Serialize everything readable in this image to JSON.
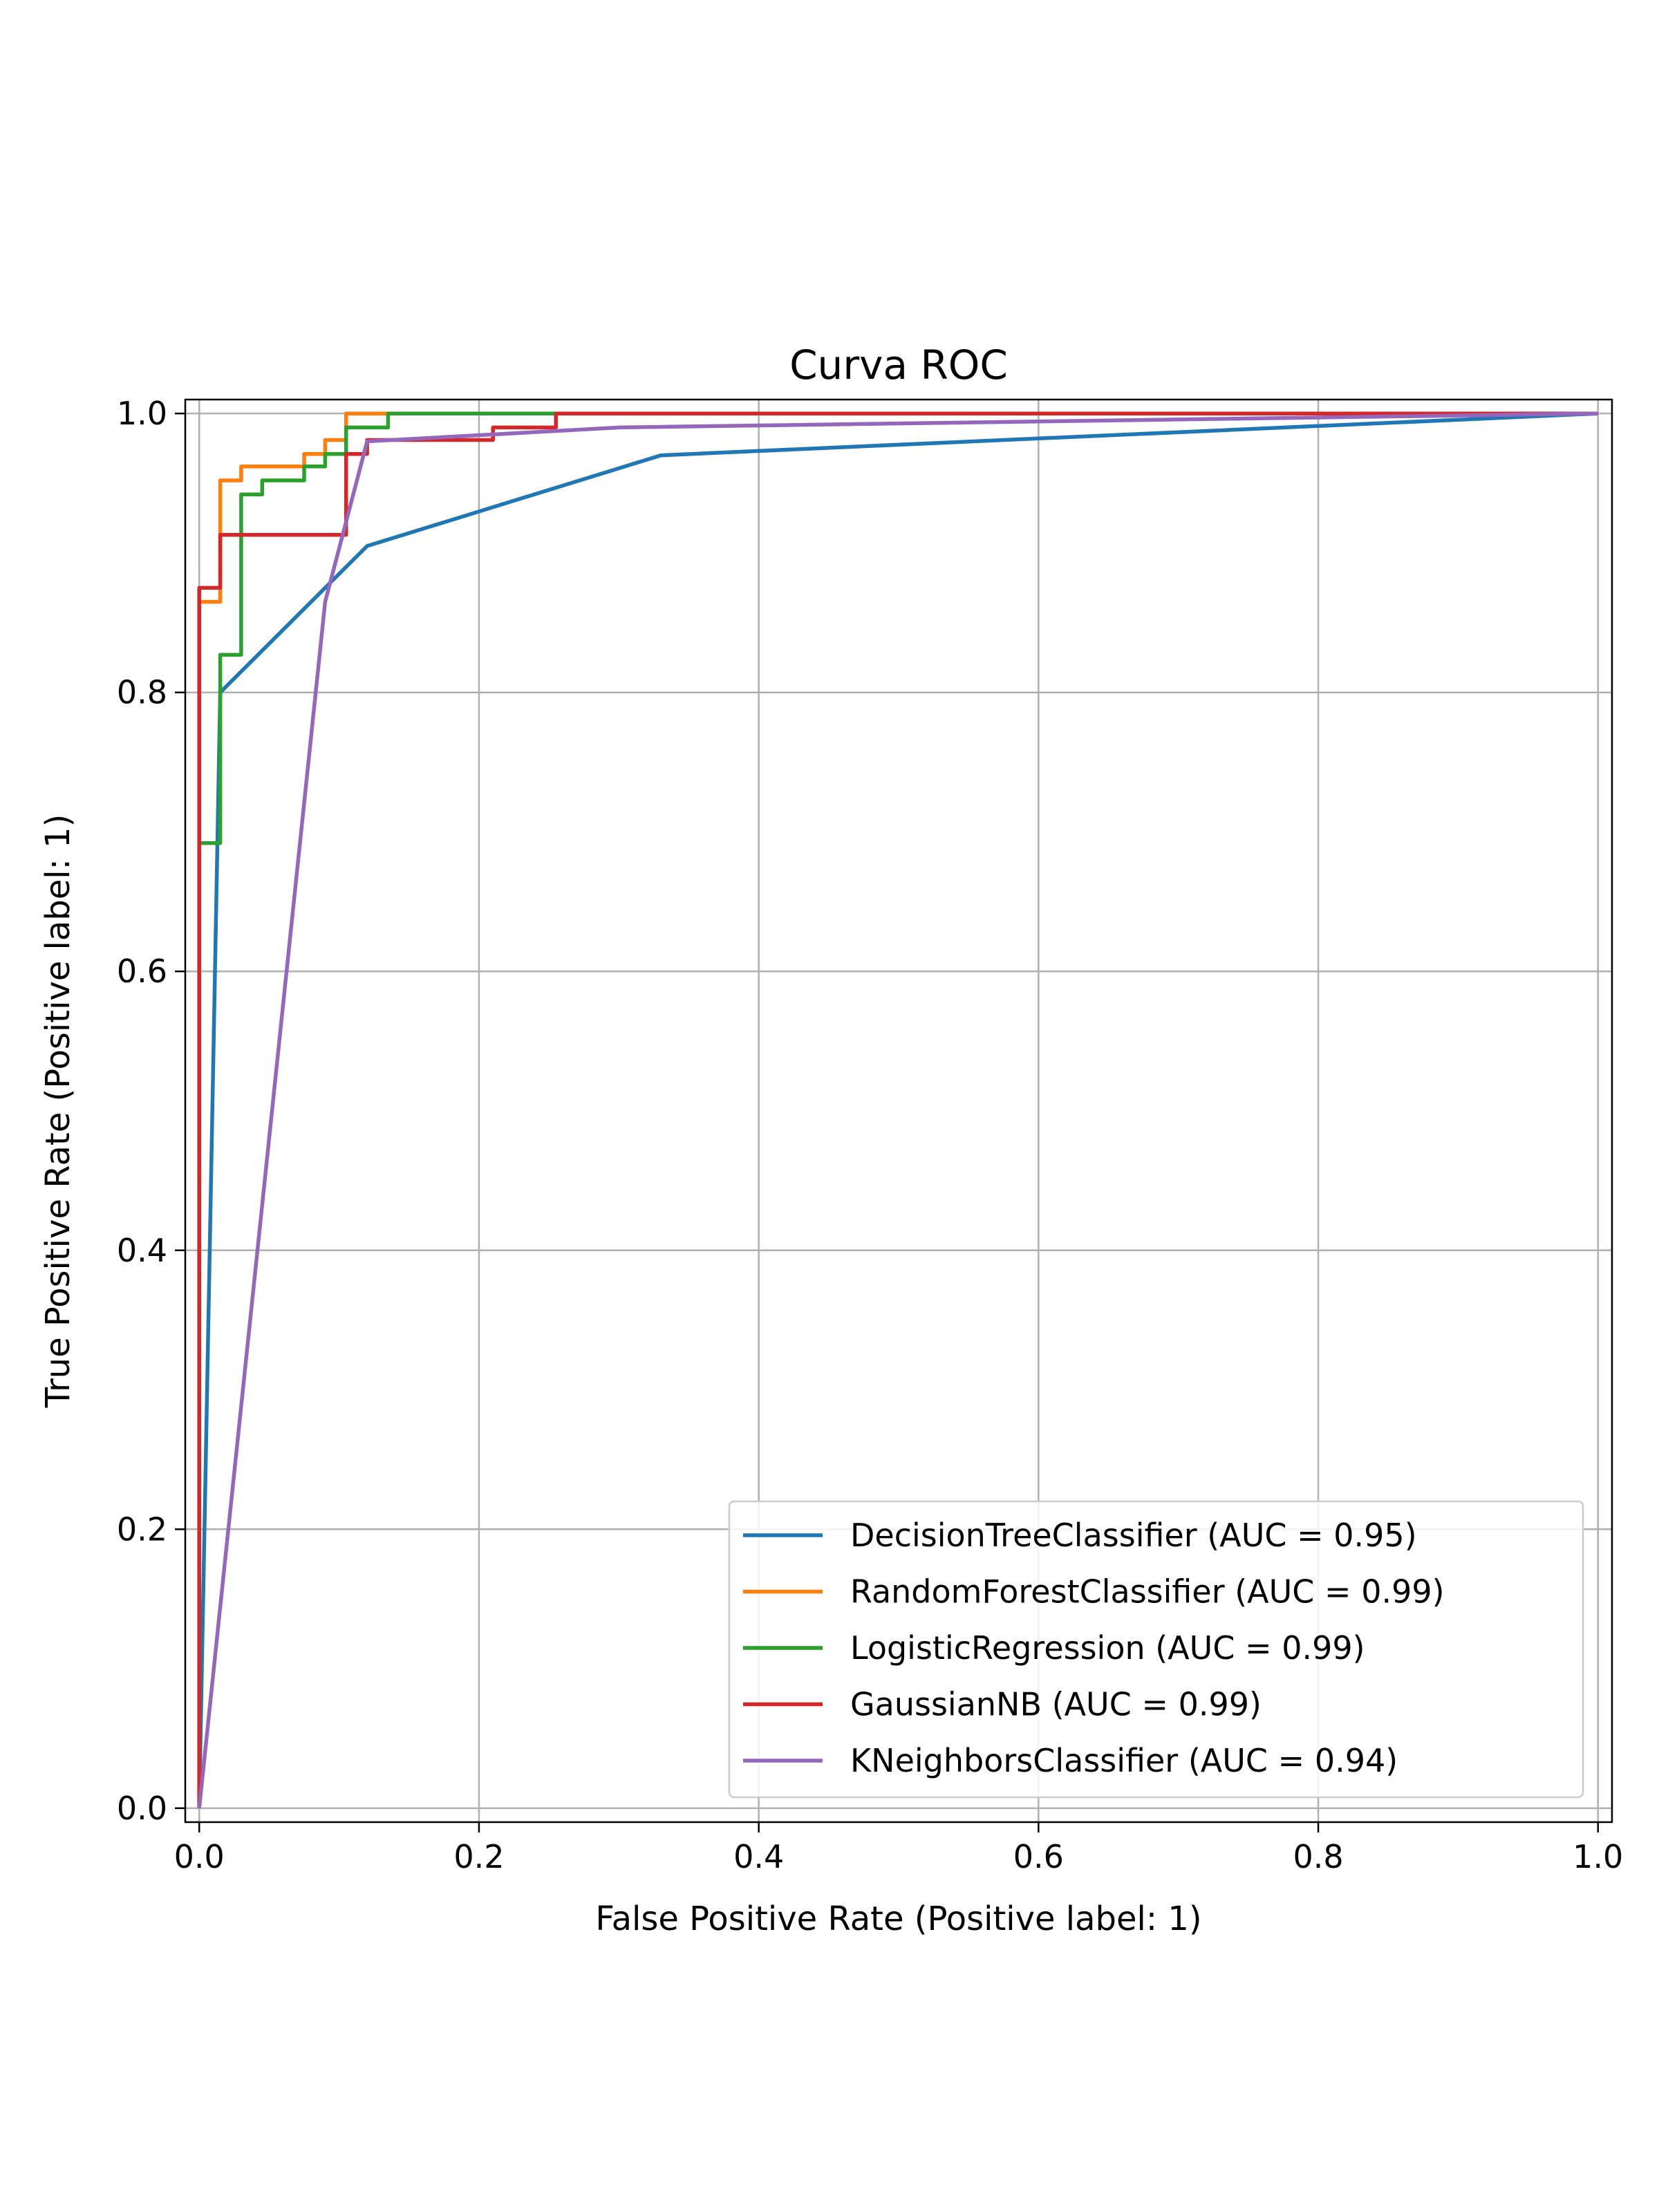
{
  "chart_data": {
    "type": "line",
    "title": "Curva ROC",
    "xlabel": "False Positive Rate (Positive label: 1)",
    "ylabel": "True Positive Rate (Positive label: 1)",
    "xlim": [
      -0.01,
      1.01
    ],
    "ylim": [
      -0.01,
      1.01
    ],
    "xticks": [
      0.0,
      0.2,
      0.4,
      0.6,
      0.8,
      1.0
    ],
    "xtick_labels": [
      "0.0",
      "0.2",
      "0.4",
      "0.6",
      "0.8",
      "1.0"
    ],
    "yticks": [
      0.0,
      0.2,
      0.4,
      0.6,
      0.8,
      1.0
    ],
    "ytick_labels": [
      "0.0",
      "0.2",
      "0.4",
      "0.6",
      "0.8",
      "1.0"
    ],
    "grid": true,
    "legend_position": "lower-right",
    "series": [
      {
        "name": "DecisionTreeClassifier (AUC = 0.95)",
        "color": "#1f77b4",
        "x": [
          0.0,
          0.015,
          0.12,
          0.33,
          1.0
        ],
        "y": [
          0.0,
          0.8,
          0.905,
          0.97,
          1.0
        ]
      },
      {
        "name": "RandomForestClassifier (AUC = 0.99)",
        "color": "#ff7f0e",
        "x": [
          0.0,
          0.0,
          0.015,
          0.015,
          0.03,
          0.03,
          0.075,
          0.075,
          0.09,
          0.09,
          0.105,
          0.105,
          1.0
        ],
        "y": [
          0.0,
          0.865,
          0.865,
          0.952,
          0.952,
          0.962,
          0.962,
          0.971,
          0.971,
          0.981,
          0.981,
          1.0,
          1.0
        ]
      },
      {
        "name": "LogisticRegression (AUC = 0.99)",
        "color": "#2ca02c",
        "x": [
          0.0,
          0.0,
          0.015,
          0.015,
          0.03,
          0.03,
          0.045,
          0.045,
          0.075,
          0.075,
          0.09,
          0.09,
          0.105,
          0.105,
          0.135,
          0.135,
          1.0
        ],
        "y": [
          0.0,
          0.692,
          0.692,
          0.827,
          0.827,
          0.942,
          0.942,
          0.952,
          0.952,
          0.962,
          0.962,
          0.971,
          0.971,
          0.99,
          0.99,
          1.0,
          1.0
        ]
      },
      {
        "name": "GaussianNB (AUC = 0.99)",
        "color": "#d62728",
        "x": [
          0.0,
          0.0,
          0.015,
          0.015,
          0.105,
          0.105,
          0.12,
          0.12,
          0.21,
          0.21,
          0.255,
          0.255,
          1.0
        ],
        "y": [
          0.0,
          0.875,
          0.875,
          0.913,
          0.913,
          0.971,
          0.971,
          0.981,
          0.981,
          0.99,
          0.99,
          1.0,
          1.0
        ]
      },
      {
        "name": "KNeighborsClassifier (AUC = 0.94)",
        "color": "#9467bd",
        "x": [
          0.0,
          0.09,
          0.12,
          0.3,
          1.0
        ],
        "y": [
          0.0,
          0.865,
          0.98,
          0.99,
          1.0
        ]
      }
    ]
  }
}
